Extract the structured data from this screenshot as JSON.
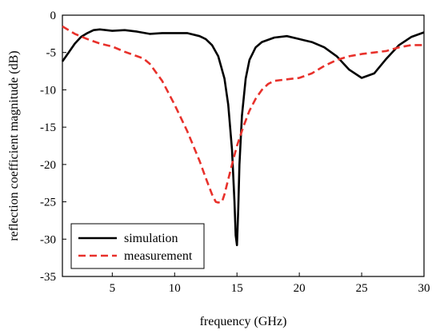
{
  "chart_data": {
    "type": "line",
    "title": "",
    "xlabel": "frequency (GHz)",
    "ylabel": "reflection coefficient magnitude (dB)",
    "xlim": [
      1,
      30
    ],
    "ylim": [
      -35,
      0
    ],
    "xticks": [
      5,
      10,
      15,
      20,
      25,
      30
    ],
    "yticks": [
      0,
      -5,
      -10,
      -15,
      -20,
      -25,
      -30,
      -35
    ],
    "grid": false,
    "legend_position": "bottom-left",
    "series": [
      {
        "name": "simulation",
        "color": "#000000",
        "style": "solid",
        "x": [
          1,
          1.5,
          2,
          2.5,
          3,
          3.5,
          4,
          5,
          6,
          7,
          8,
          9,
          10,
          11,
          12,
          12.5,
          13,
          13.5,
          14,
          14.3,
          14.6,
          14.8,
          14.9,
          15,
          15.1,
          15.2,
          15.4,
          15.7,
          16,
          16.5,
          17,
          18,
          19,
          20,
          21,
          22,
          23,
          24,
          25,
          26,
          27,
          28,
          29,
          30
        ],
        "y": [
          -6.2,
          -5.0,
          -3.8,
          -2.9,
          -2.4,
          -2.0,
          -1.9,
          -2.1,
          -2.0,
          -2.2,
          -2.5,
          -2.4,
          -2.4,
          -2.4,
          -2.8,
          -3.2,
          -4.0,
          -5.5,
          -8.5,
          -12.0,
          -18.0,
          -25.0,
          -29.5,
          -30.8,
          -26.0,
          -20.0,
          -13.5,
          -8.5,
          -6.0,
          -4.3,
          -3.6,
          -3.0,
          -2.8,
          -3.2,
          -3.6,
          -4.3,
          -5.5,
          -7.3,
          -8.4,
          -7.8,
          -5.8,
          -4.0,
          -2.9,
          -2.3
        ]
      },
      {
        "name": "measurement",
        "color": "#e8312b",
        "style": "dashed",
        "x": [
          1,
          2,
          3,
          4,
          5,
          6,
          7,
          7.5,
          8,
          9,
          10,
          11,
          12,
          12.5,
          13,
          13.3,
          13.5,
          13.8,
          14,
          14.3,
          14.6,
          15,
          15.5,
          16,
          16.5,
          17,
          17.5,
          18,
          19,
          20,
          21,
          22,
          23,
          24,
          25,
          26,
          27,
          28,
          29,
          30
        ],
        "y": [
          -1.5,
          -2.5,
          -3.2,
          -3.8,
          -4.2,
          -4.9,
          -5.5,
          -5.8,
          -6.5,
          -8.8,
          -12.0,
          -15.5,
          -19.5,
          -21.8,
          -24.0,
          -25.0,
          -25.1,
          -25.0,
          -24.0,
          -22.0,
          -20.0,
          -17.5,
          -15.0,
          -12.8,
          -11.2,
          -10.0,
          -9.2,
          -8.8,
          -8.6,
          -8.4,
          -7.8,
          -6.8,
          -6.0,
          -5.5,
          -5.2,
          -5.0,
          -4.8,
          -4.3,
          -4.0,
          -4.0
        ]
      }
    ]
  }
}
